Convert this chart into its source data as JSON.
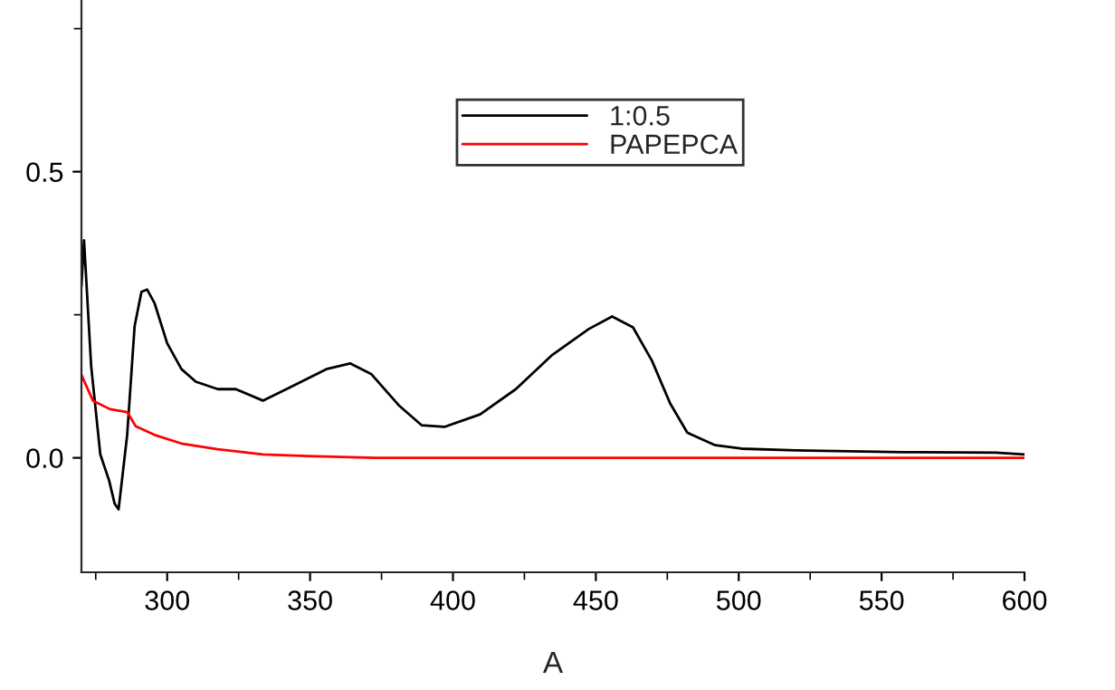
{
  "chart_data": {
    "type": "line",
    "xlabel": "A",
    "xlim": [
      270,
      600
    ],
    "ylim": [
      -0.2,
      0.8
    ],
    "xticks": [
      300,
      350,
      400,
      450,
      500,
      550,
      600
    ],
    "yticks": [
      {
        "value": 0,
        "label": "0.0"
      },
      {
        "value": 0.5,
        "label": "0.5"
      }
    ],
    "grid": false,
    "legend": "top",
    "marker": "none",
    "line_style": "solid",
    "series": [
      {
        "name": "1:0.5",
        "color": "#000000",
        "x": [
          270,
          270.9,
          273.4,
          276.6,
          279.7,
          281.6,
          283,
          286,
          288.6,
          291,
          293,
          295.6,
          300,
          305,
          310,
          317.7,
          324,
          333.5,
          343,
          355.7,
          364,
          371.5,
          381,
          389,
          397,
          409.5,
          422,
          434.8,
          447.5,
          455.7,
          463,
          469.6,
          476,
          482,
          491.8,
          501,
          520,
          558,
          590,
          600
        ],
        "values": [
          0.3,
          0.38,
          0.16,
          0.006,
          -0.04,
          -0.08,
          -0.09,
          0.04,
          0.23,
          0.29,
          0.294,
          0.27,
          0.2,
          0.155,
          0.133,
          0.12,
          0.12,
          0.1,
          0.123,
          0.155,
          0.165,
          0.146,
          0.092,
          0.057,
          0.054,
          0.076,
          0.12,
          0.18,
          0.225,
          0.247,
          0.228,
          0.17,
          0.095,
          0.044,
          0.022,
          0.016,
          0.013,
          0.01,
          0.009,
          0.006
        ]
      },
      {
        "name": "PAPEPCA",
        "color": "#ff0000",
        "x": [
          270,
          274,
          280,
          286,
          289,
          295.6,
          305,
          317.7,
          333.5,
          349,
          373,
          600
        ],
        "values": [
          0.145,
          0.1,
          0.085,
          0.08,
          0.055,
          0.04,
          0.025,
          0.015,
          0.006,
          0.003,
          0.0,
          0.0
        ]
      }
    ]
  }
}
